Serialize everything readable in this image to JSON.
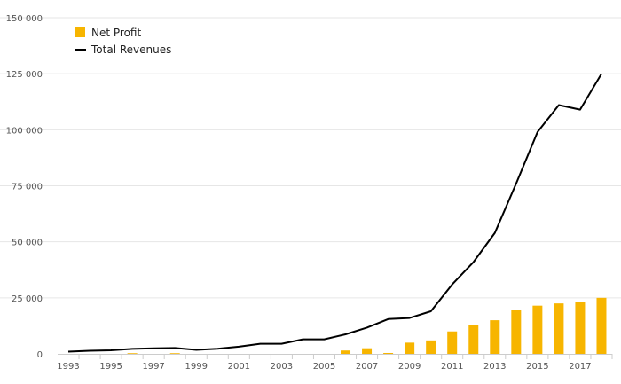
{
  "chart_data": {
    "type": "bar",
    "x": [
      1993,
      1994,
      1995,
      1996,
      1997,
      1998,
      1999,
      2000,
      2001,
      2002,
      2003,
      2004,
      2005,
      2006,
      2007,
      2008,
      2009,
      2010,
      2011,
      2012,
      2013,
      2014,
      2015,
      2016,
      2017,
      2018
    ],
    "x_tick_labels": [
      "1993",
      "1995",
      "1997",
      "1999",
      "2001",
      "2003",
      "2005",
      "2007",
      "2009",
      "2011",
      "2013",
      "2015",
      "2017"
    ],
    "y_tick_labels": [
      "0",
      "25 000",
      "50 000",
      "75 000",
      "100 000",
      "125 000",
      "150 000"
    ],
    "ylim": [
      0,
      150000
    ],
    "grid": true,
    "legend": "top-left",
    "series": [
      {
        "name": "Net Profit",
        "kind": "bar",
        "color": "#F7B500",
        "values": [
          0,
          0,
          0,
          300,
          0,
          300,
          0,
          0,
          0,
          0,
          0,
          0,
          0,
          1500,
          2500,
          400,
          5000,
          6000,
          10000,
          13000,
          15000,
          19500,
          21500,
          22500,
          23000,
          25000
        ]
      },
      {
        "name": "Total Revenues",
        "kind": "line",
        "color": "#000000",
        "values": [
          1000,
          1400,
          1600,
          2200,
          2500,
          2600,
          1800,
          2300,
          3200,
          4500,
          4500,
          6500,
          6500,
          8700,
          11700,
          15500,
          16000,
          19000,
          31000,
          41000,
          54000,
          76000,
          99000,
          111000,
          109000,
          125000
        ]
      }
    ]
  }
}
